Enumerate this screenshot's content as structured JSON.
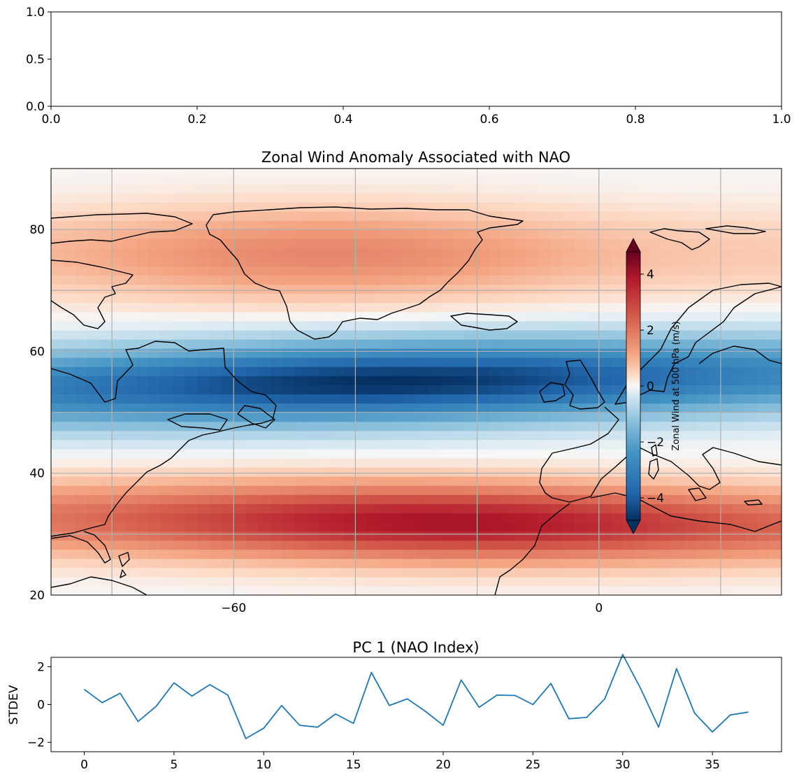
{
  "chart_data": [
    {
      "type": "line",
      "title": "",
      "xlabel": "",
      "ylabel": "",
      "xlim": [
        0.0,
        1.0
      ],
      "ylim": [
        0.0,
        1.0
      ],
      "xticks": [
        "0.0",
        "0.2",
        "0.4",
        "0.6",
        "0.8",
        "1.0"
      ],
      "yticks": [
        "0.0",
        "0.5",
        "1.0"
      ],
      "series": []
    },
    {
      "type": "heatmap",
      "title": "Zonal Wind Anomaly Associated with NAO",
      "xlim": [
        -90,
        30
      ],
      "ylim": [
        20,
        90
      ],
      "xticks": [
        -60,
        0
      ],
      "xtick_labels": [
        "−60",
        "0"
      ],
      "yticks": [
        20,
        40,
        60,
        80
      ],
      "gridlines_lon": [
        -80,
        -60,
        -40,
        -20,
        0,
        20
      ],
      "gridlines_lat": [
        30,
        40,
        50,
        60,
        70,
        80
      ],
      "colormap": "RdBu_r",
      "colorbar": {
        "label": "Zonal Wind at 500 hPa (m/s)",
        "range": [
          -4.8,
          4.8
        ],
        "ticks": [
          -4,
          -2,
          0,
          2,
          4
        ],
        "tick_labels": [
          "−4",
          "−2",
          "0",
          "2",
          "4"
        ],
        "extend": "both"
      },
      "field_features": [
        {
          "kind": "negative-band",
          "center_lat": 55,
          "peak_value": -4.8,
          "peak_lon": -35
        },
        {
          "kind": "positive-band",
          "center_lat": 32,
          "peak_value": 4.0,
          "peak_lon": -25
        },
        {
          "kind": "positive-band",
          "center_lat": 76,
          "peak_value": 1.7,
          "peak_lon": -45
        }
      ],
      "grid": true
    },
    {
      "type": "line",
      "title": "PC 1 (NAO Index)",
      "xlabel": "",
      "ylabel": "STDEV",
      "xlim": [
        -1.85,
        38.85
      ],
      "ylim": [
        -2.5,
        2.5
      ],
      "xticks": [
        0,
        5,
        10,
        15,
        20,
        25,
        30,
        35
      ],
      "yticks": [
        -2,
        0,
        2
      ],
      "ytick_labels": [
        "−2",
        "0",
        "2"
      ],
      "x": [
        0,
        1,
        2,
        3,
        4,
        5,
        6,
        7,
        8,
        9,
        10,
        11,
        12,
        13,
        14,
        15,
        16,
        17,
        18,
        19,
        20,
        21,
        22,
        23,
        24,
        25,
        26,
        27,
        28,
        29,
        30,
        31,
        32,
        33,
        34,
        35,
        36,
        37
      ],
      "series": [
        {
          "color": "#1f77b4",
          "values": [
            0.8,
            0.1,
            0.6,
            -0.9,
            -0.1,
            1.15,
            0.45,
            1.05,
            0.5,
            -1.8,
            -1.25,
            -0.05,
            -1.1,
            -1.2,
            -0.5,
            -1.0,
            1.7,
            -0.05,
            0.3,
            -0.35,
            -1.1,
            1.3,
            -0.15,
            0.5,
            0.48,
            0.0,
            1.12,
            -0.75,
            -0.68,
            0.3,
            2.65,
            0.85,
            -1.2,
            1.9,
            -0.45,
            -1.45,
            -0.55,
            -0.4
          ]
        }
      ]
    }
  ]
}
